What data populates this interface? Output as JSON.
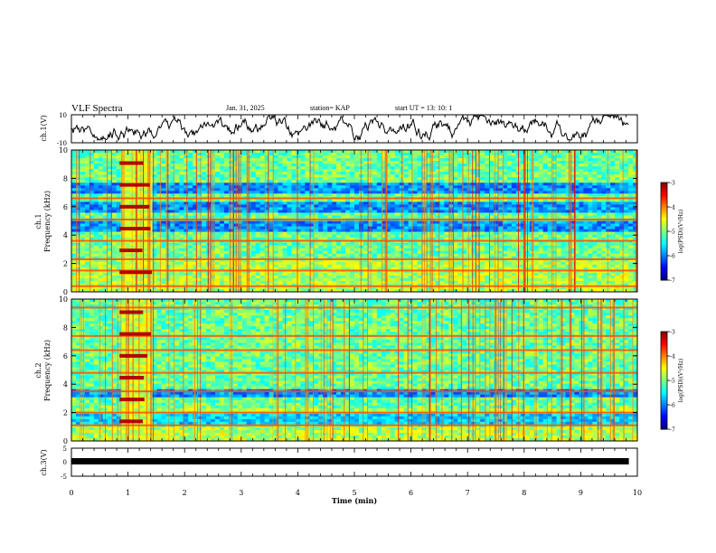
{
  "header": {
    "title": "VLF Spectra",
    "date": "Jan. 31, 2025",
    "station": "station= KAP",
    "start": "start  UT =   13: 10: 1"
  },
  "chart_data": {
    "type": "multi-panel spectrogram",
    "x_axis": {
      "label": "Time (min)",
      "range": [
        0,
        10
      ],
      "ticks": [
        "0",
        "1",
        "2",
        "3",
        "4",
        "5",
        "6",
        "7",
        "8",
        "9",
        "10"
      ]
    },
    "panels": [
      {
        "id": "ch1-waveform",
        "type": "line",
        "ylabel": "ch.1(V)",
        "ylim": [
          -10,
          10
        ],
        "ytick_labels": [
          "10",
          "-10"
        ],
        "data_end_min": 9.85
      },
      {
        "id": "ch1-spectrogram",
        "type": "heatmap",
        "ylabel_line1": "ch.1",
        "ylabel_line2": "Frequency (kHz)",
        "ylim": [
          0,
          10
        ],
        "ytick_labels": [
          "0",
          "2",
          "4",
          "6",
          "8",
          "10"
        ],
        "colorbar": {
          "label": "log(PSD)(V²/Hz)",
          "range": [
            -7,
            -3
          ],
          "tick_labels": [
            "-3",
            "-4",
            "-5",
            "-6",
            "-7"
          ]
        },
        "features": [
          {
            "type": "burst",
            "start_min": 0.85,
            "end_min": 1.45
          },
          {
            "type": "band",
            "freq_khz": [
              4.3,
              5.0
            ],
            "level": "low"
          },
          {
            "type": "band",
            "freq_khz": [
              5.6,
              6.3
            ],
            "level": "low"
          },
          {
            "type": "band",
            "freq_khz": [
              7.0,
              7.7
            ],
            "level": "low"
          },
          {
            "type": "line",
            "freq_khz": 6.6
          },
          {
            "type": "line",
            "freq_khz": 5.1
          },
          {
            "type": "line",
            "freq_khz": 3.6
          },
          {
            "type": "line",
            "freq_khz": 2.3
          },
          {
            "type": "line",
            "freq_khz": 1.5
          },
          {
            "type": "line",
            "freq_khz": 0.4
          }
        ]
      },
      {
        "id": "ch2-spectrogram",
        "type": "heatmap",
        "ylabel_line1": "ch.2",
        "ylabel_line2": "Frequency (kHz)",
        "ylim": [
          0,
          10
        ],
        "ytick_labels": [
          "0",
          "2",
          "4",
          "6",
          "8",
          "10"
        ],
        "colorbar": {
          "label": "log(PSD)(V²/Hz)",
          "range": [
            -7,
            -3
          ],
          "tick_labels": [
            "-3",
            "-4",
            "-5",
            "-6",
            "-7"
          ]
        },
        "features": [
          {
            "type": "burst",
            "start_min": 0.85,
            "end_min": 1.45
          },
          {
            "type": "band",
            "freq_khz": [
              3.0,
              3.6
            ],
            "level": "low"
          },
          {
            "type": "band",
            "freq_khz": [
              1.2,
              2.0
            ],
            "level": "low"
          },
          {
            "type": "line",
            "freq_khz": 9.4
          },
          {
            "type": "line",
            "freq_khz": 7.4
          },
          {
            "type": "line",
            "freq_khz": 6.4
          },
          {
            "type": "line",
            "freq_khz": 4.8
          },
          {
            "type": "line",
            "freq_khz": 3.5
          },
          {
            "type": "line",
            "freq_khz": 2.0
          },
          {
            "type": "line",
            "freq_khz": 1.1
          }
        ]
      },
      {
        "id": "ch3-waveform",
        "type": "line",
        "ylabel": "ch.3(V)",
        "ylim": [
          -5,
          5
        ],
        "ytick_labels": [
          "5",
          "0",
          "-5"
        ],
        "mean_value_v": 0,
        "data_end_min": 9.85
      }
    ]
  }
}
